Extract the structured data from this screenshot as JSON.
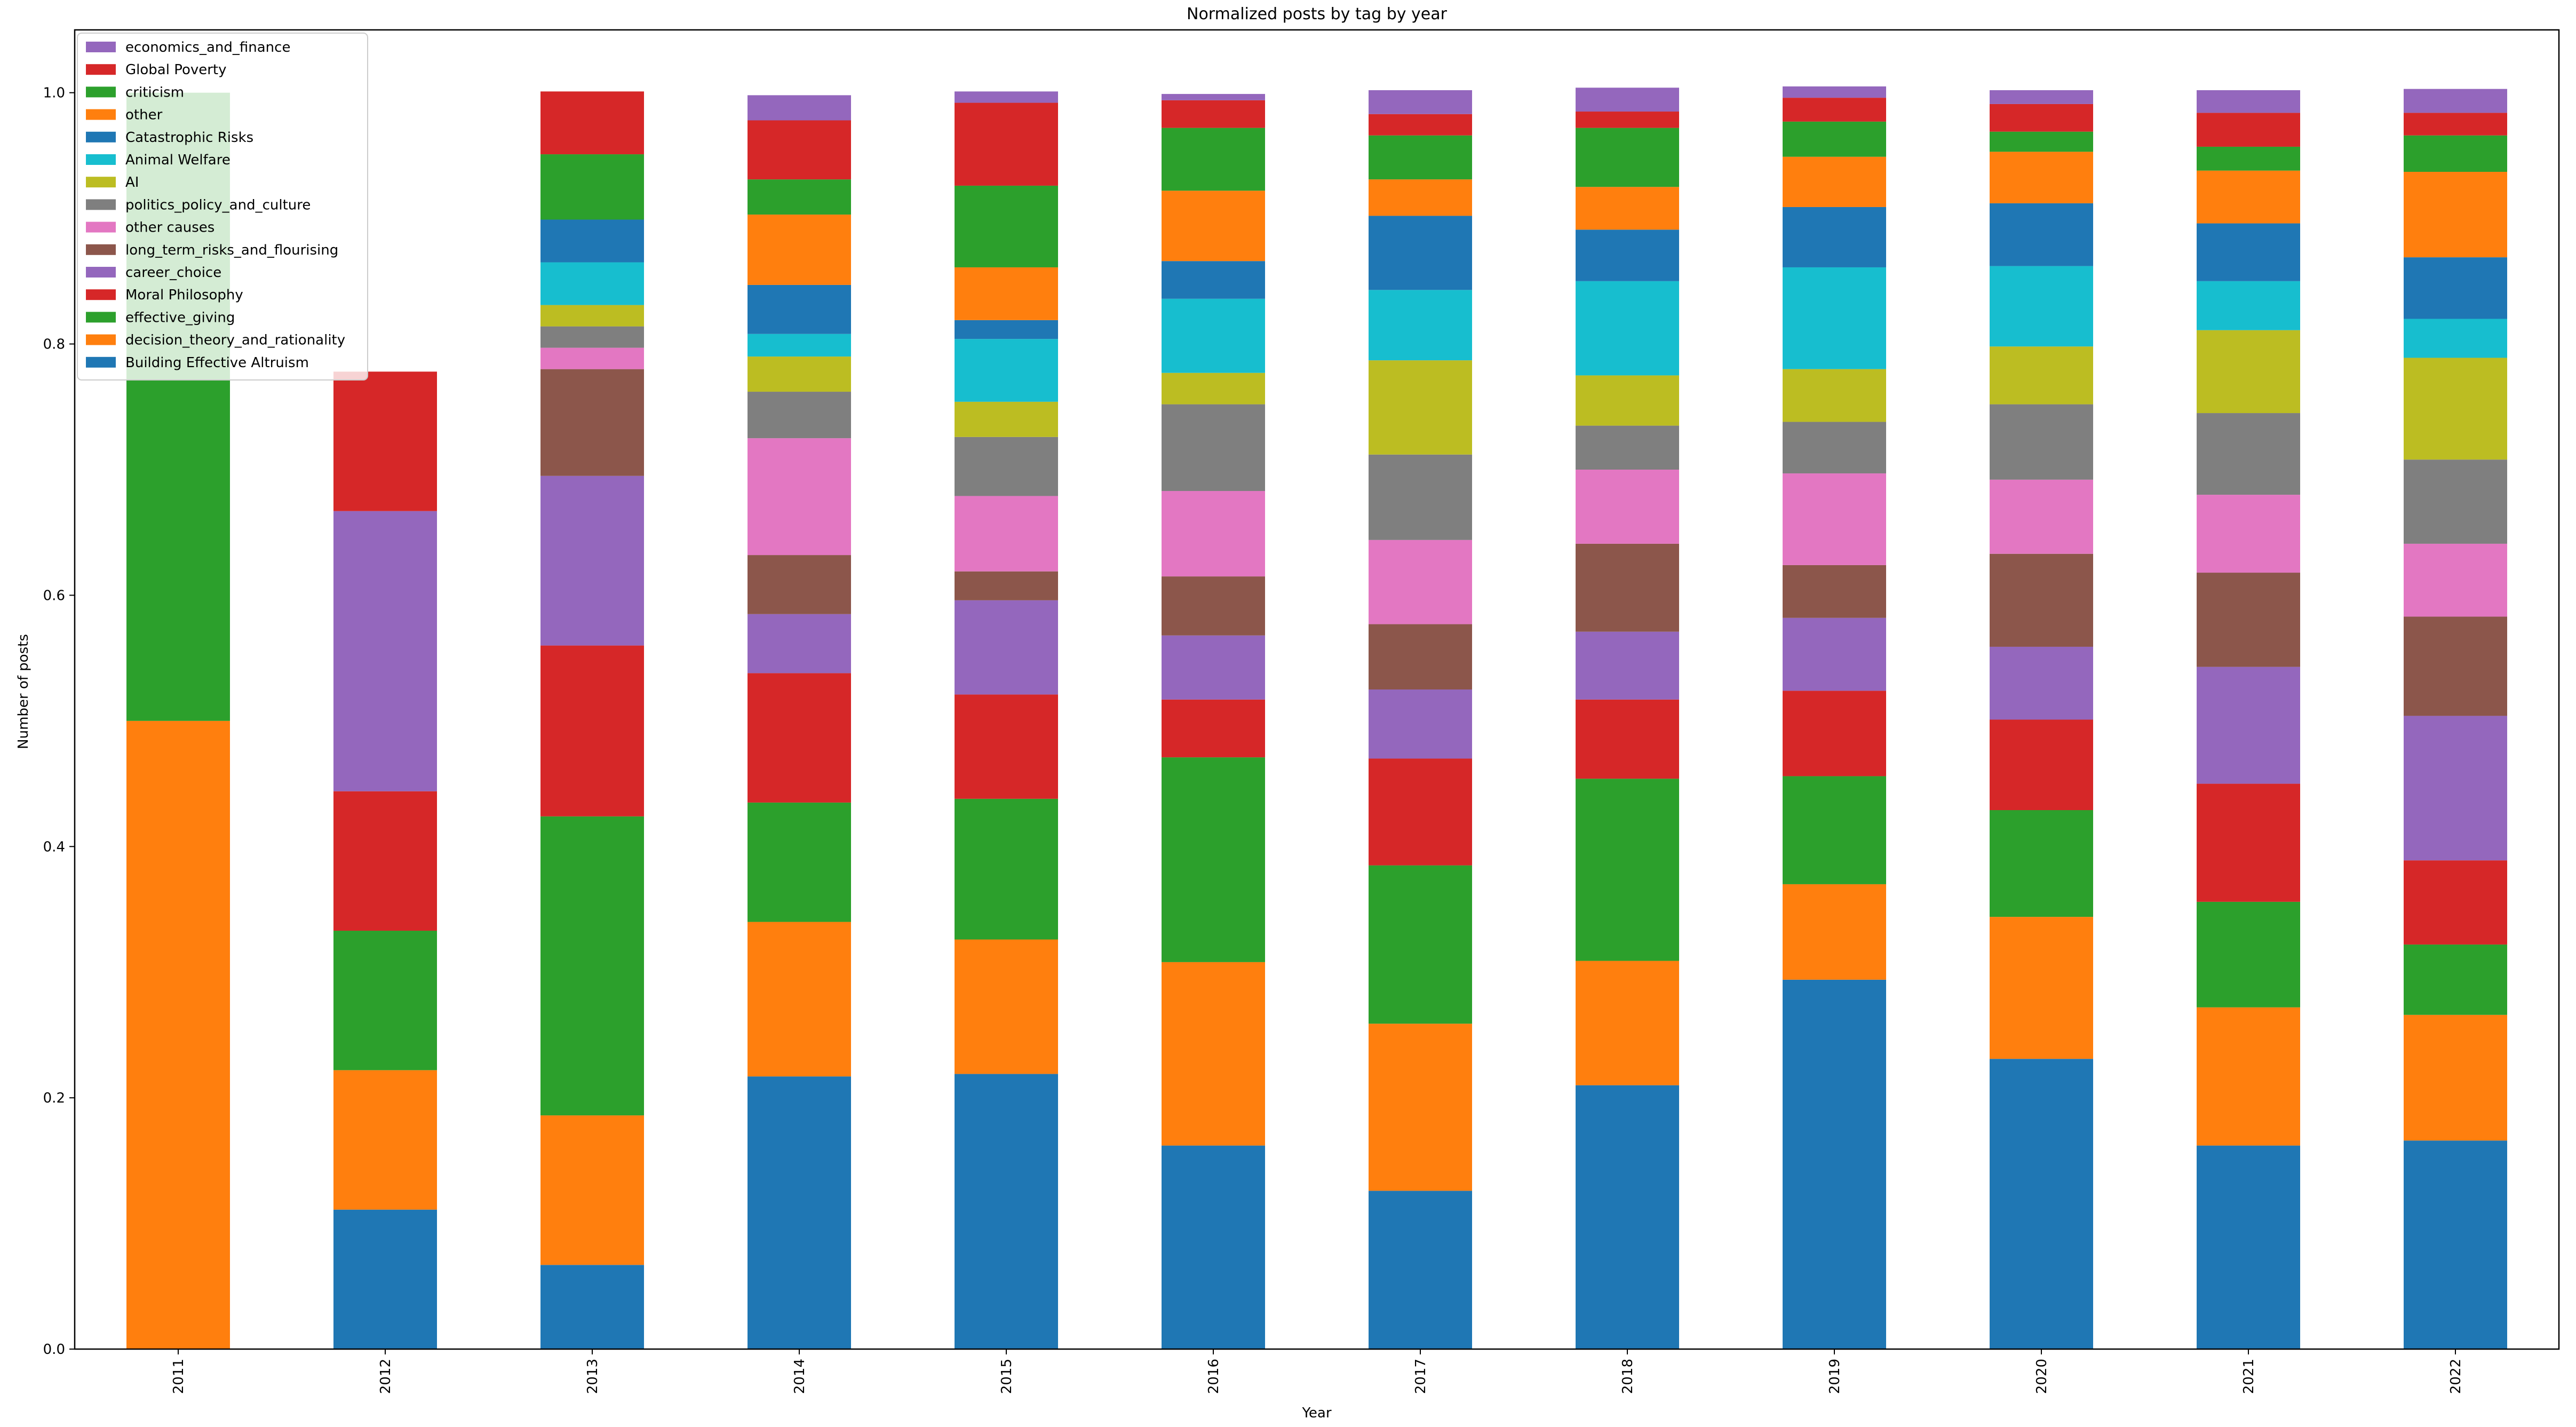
{
  "chart_data": {
    "type": "bar",
    "stacked": true,
    "title": "Normalized posts by tag by year",
    "xlabel": "Year",
    "ylabel": "Number of posts",
    "ylim": [
      0,
      1.05
    ],
    "yticks": [
      0.0,
      0.2,
      0.4,
      0.6,
      0.8,
      1.0
    ],
    "ytick_labels": [
      "0.0",
      "0.2",
      "0.4",
      "0.6",
      "0.8",
      "1.0"
    ],
    "legend_position": "top-left",
    "categories": [
      "2011",
      "2012",
      "2013",
      "2014",
      "2015",
      "2016",
      "2017",
      "2018",
      "2019",
      "2020",
      "2021",
      "2022"
    ],
    "series": [
      {
        "name": "Building Effective Altruism",
        "color": "#1f77b4",
        "values": [
          0,
          0.111,
          0.067,
          0.217,
          0.219,
          0.162,
          0.126,
          0.21,
          0.294,
          0.231,
          0.162,
          0.166
        ]
      },
      {
        "name": "decision_theory_and_rationality",
        "color": "#ff7f0e",
        "values": [
          0.5,
          0.111,
          0.119,
          0.123,
          0.107,
          0.146,
          0.133,
          0.099,
          0.076,
          0.113,
          0.11,
          0.1
        ]
      },
      {
        "name": "effective_giving",
        "color": "#2ca02c",
        "values": [
          0.5,
          0.111,
          0.238,
          0.095,
          0.112,
          0.163,
          0.126,
          0.145,
          0.086,
          0.085,
          0.084,
          0.056
        ]
      },
      {
        "name": "Moral Philosophy",
        "color": "#d62728",
        "values": [
          0,
          0.111,
          0.136,
          0.103,
          0.083,
          0.046,
          0.085,
          0.063,
          0.068,
          0.072,
          0.094,
          0.067
        ]
      },
      {
        "name": "career_choice",
        "color": "#9467bd",
        "values": [
          0,
          0.223,
          0.135,
          0.047,
          0.075,
          0.051,
          0.055,
          0.054,
          0.058,
          0.058,
          0.093,
          0.115
        ]
      },
      {
        "name": "long_term_risks_and_flourising",
        "color": "#8c564b",
        "values": [
          0,
          0,
          0.085,
          0.047,
          0.023,
          0.047,
          0.052,
          0.07,
          0.042,
          0.074,
          0.075,
          0.079
        ]
      },
      {
        "name": "other causes",
        "color": "#e377c2",
        "values": [
          0,
          0,
          0.017,
          0.093,
          0.06,
          0.068,
          0.067,
          0.059,
          0.073,
          0.059,
          0.062,
          0.058
        ]
      },
      {
        "name": "politics_policy_and_culture",
        "color": "#7f7f7f",
        "values": [
          0,
          0,
          0.017,
          0.037,
          0.047,
          0.069,
          0.068,
          0.035,
          0.041,
          0.06,
          0.065,
          0.067
        ]
      },
      {
        "name": "AI",
        "color": "#bcbd22",
        "values": [
          0,
          0,
          0.017,
          0.028,
          0.028,
          0.025,
          0.075,
          0.04,
          0.042,
          0.046,
          0.066,
          0.081
        ]
      },
      {
        "name": "Animal Welfare",
        "color": "#17becf",
        "values": [
          0,
          0,
          0.034,
          0.018,
          0.05,
          0.059,
          0.056,
          0.075,
          0.081,
          0.064,
          0.039,
          0.031
        ]
      },
      {
        "name": "Catastrophic Risks",
        "color": "#1f77b4",
        "values": [
          0,
          0,
          0.034,
          0.039,
          0.015,
          0.03,
          0.059,
          0.041,
          0.048,
          0.05,
          0.046,
          0.049
        ]
      },
      {
        "name": "other",
        "color": "#ff7f0e",
        "values": [
          0,
          0,
          0,
          0.056,
          0.042,
          0.056,
          0.029,
          0.034,
          0.04,
          0.041,
          0.042,
          0.068
        ]
      },
      {
        "name": "criticism",
        "color": "#2ca02c",
        "values": [
          0,
          0,
          0.052,
          0.028,
          0.065,
          0.05,
          0.035,
          0.047,
          0.028,
          0.016,
          0.019,
          0.029
        ]
      },
      {
        "name": "Global Poverty",
        "color": "#d62728",
        "values": [
          0,
          0.111,
          0.05,
          0.047,
          0.066,
          0.022,
          0.017,
          0.013,
          0.019,
          0.022,
          0.027,
          0.018
        ]
      },
      {
        "name": "economics_and_finance",
        "color": "#9467bd",
        "values": [
          0,
          0,
          0,
          0.02,
          0.009,
          0.005,
          0.019,
          0.019,
          0.009,
          0.011,
          0.018,
          0.019
        ]
      }
    ],
    "legend_order": [
      "economics_and_finance",
      "Global Poverty",
      "criticism",
      "other",
      "Catastrophic Risks",
      "Animal Welfare",
      "AI",
      "politics_policy_and_culture",
      "other causes",
      "long_term_risks_and_flourising",
      "career_choice",
      "Moral Philosophy",
      "effective_giving",
      "decision_theory_and_rationality",
      "Building Effective Altruism"
    ]
  }
}
